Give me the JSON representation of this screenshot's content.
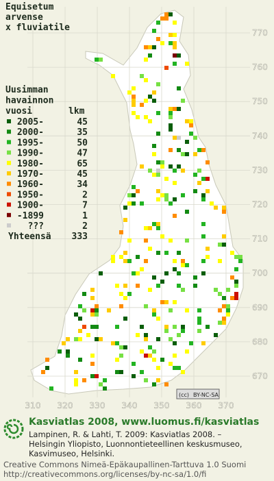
{
  "title": [
    "Equisetum",
    "arvense",
    "x fluviatile"
  ],
  "legend": {
    "heading": [
      "Uusimman",
      "havainnon",
      "vuosi"
    ],
    "count_heading": "lkm",
    "rows": [
      {
        "label": "2005-",
        "count": 45,
        "color": "#0b5e0b"
      },
      {
        "label": "2000-",
        "count": 35,
        "color": "#138a13"
      },
      {
        "label": "1995-",
        "count": 50,
        "color": "#22b422"
      },
      {
        "label": "1990-",
        "count": 47,
        "color": "#77e044"
      },
      {
        "label": "1980-",
        "count": 65,
        "color": "#ffff00"
      },
      {
        "label": "1970-",
        "count": 45,
        "color": "#ffcc00"
      },
      {
        "label": "1960-",
        "count": 34,
        "color": "#ff8c00"
      },
      {
        "label": "1950-",
        "count": 2,
        "color": "#ee4a00"
      },
      {
        "label": "1900-",
        "count": 7,
        "color": "#cc1100"
      },
      {
        "label": "-1899",
        "count": 1,
        "color": "#7a0000"
      },
      {
        "label": "???",
        "count": 2,
        "color": "#cccccc"
      }
    ],
    "total_label": "Yhteensä",
    "total": 333
  },
  "grid": {
    "y_labels": [
      770,
      760,
      750,
      740,
      730,
      720,
      710,
      700,
      690,
      680,
      670
    ],
    "x_labels": [
      310,
      320,
      330,
      340,
      350,
      360,
      370
    ]
  },
  "license_badge": [
    "(cc)",
    "BY-NC-SA"
  ],
  "footer": {
    "headline": "Kasviatlas 2008, www.luomus.fi/kasviatlas",
    "citation": [
      "Lampinen, R. & Lahti, T. 2009: Kasviatlas 2008. –",
      "Helsingin Yliopisto, Luonnontieteellinen keskusmuseo,",
      "Kasvimuseo, Helsinki."
    ],
    "license": [
      "Creative Commons Nimeä-Epäkaupallinen-Tarttuva 1.0 Suomi",
      "http://creativecommons.org/licenses/by-nc-sa/1.0/fi"
    ]
  }
}
